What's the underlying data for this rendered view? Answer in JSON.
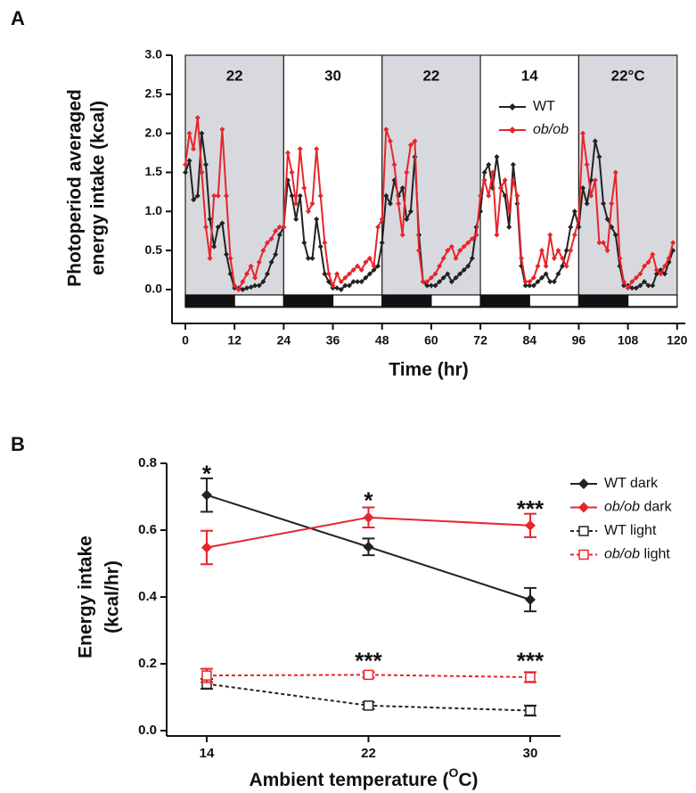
{
  "chart_data": [
    {
      "type": "line",
      "panel_label": "A",
      "y_label": [
        "Photoperiod averaged",
        "energy intake (kcal)"
      ],
      "x_label": "Time (hr)",
      "xlim": [
        -3,
        122
      ],
      "xticks": [
        0,
        12,
        24,
        36,
        48,
        60,
        72,
        84,
        96,
        108,
        120
      ],
      "ylim": [
        -0.4,
        3.0
      ],
      "yticks": [
        {
          "value": 0,
          "label": "0.0"
        },
        0.5,
        {
          "value": 1,
          "label": "1.0"
        },
        1.5,
        {
          "value": 2,
          "label": "2.0"
        },
        2.5,
        {
          "value": 3,
          "label": "3.0"
        }
      ],
      "periods": [
        {
          "label": "22",
          "start": 0,
          "end": 24,
          "shaded": true
        },
        {
          "label": "30",
          "start": 24,
          "end": 48,
          "shaded": false
        },
        {
          "label": "22",
          "start": 48,
          "end": 72,
          "shaded": true
        },
        {
          "label": "14",
          "start": 72,
          "end": 96,
          "shaded": false
        },
        {
          "label": "22°C",
          "start": 96,
          "end": 120,
          "shaded": true
        }
      ],
      "photoperiod": [
        {
          "start": 0,
          "end": 12,
          "phase": "dark"
        },
        {
          "start": 12,
          "end": 24,
          "phase": "light"
        },
        {
          "start": 24,
          "end": 36,
          "phase": "dark"
        },
        {
          "start": 36,
          "end": 48,
          "phase": "light"
        },
        {
          "start": 48,
          "end": 60,
          "phase": "dark"
        },
        {
          "start": 60,
          "end": 72,
          "phase": "light"
        },
        {
          "start": 72,
          "end": 84,
          "phase": "dark"
        },
        {
          "start": 84,
          "end": 96,
          "phase": "light"
        },
        {
          "start": 96,
          "end": 108,
          "phase": "dark"
        },
        {
          "start": 108,
          "end": 120,
          "phase": "light"
        }
      ],
      "legend": "upper right",
      "x": [
        0,
        1,
        2,
        3,
        4,
        5,
        6,
        7,
        8,
        9,
        10,
        11,
        12,
        13,
        14,
        15,
        16,
        17,
        18,
        19,
        20,
        21,
        22,
        23,
        24,
        25,
        26,
        27,
        28,
        29,
        30,
        31,
        32,
        33,
        34,
        35,
        36,
        37,
        38,
        39,
        40,
        41,
        42,
        43,
        44,
        45,
        46,
        47,
        48,
        49,
        50,
        51,
        52,
        53,
        54,
        55,
        56,
        57,
        58,
        59,
        60,
        61,
        62,
        63,
        64,
        65,
        66,
        67,
        68,
        69,
        70,
        71,
        72,
        73,
        74,
        75,
        76,
        77,
        78,
        79,
        80,
        81,
        82,
        83,
        84,
        85,
        86,
        87,
        88,
        89,
        90,
        91,
        92,
        93,
        94,
        95,
        96,
        97,
        98,
        99,
        100,
        101,
        102,
        103,
        104,
        105,
        106,
        107,
        108,
        109,
        110,
        111,
        112,
        113,
        114,
        115,
        116,
        117,
        118,
        119
      ],
      "series": [
        {
          "name": "WT",
          "color": "#222222",
          "values": [
            1.5,
            1.65,
            1.15,
            1.2,
            2.0,
            1.6,
            0.9,
            0.55,
            0.8,
            0.85,
            0.45,
            0.2,
            0.02,
            0.02,
            0.0,
            0.02,
            0.03,
            0.05,
            0.05,
            0.1,
            0.2,
            0.35,
            0.45,
            0.7,
            0.8,
            1.4,
            1.2,
            0.9,
            1.2,
            0.6,
            0.4,
            0.4,
            0.9,
            0.55,
            0.2,
            0.1,
            0.02,
            0.02,
            0.0,
            0.05,
            0.05,
            0.1,
            0.1,
            0.1,
            0.15,
            0.2,
            0.25,
            0.3,
            0.6,
            1.2,
            1.1,
            1.4,
            1.2,
            1.3,
            0.9,
            1.0,
            1.7,
            0.7,
            0.1,
            0.05,
            0.05,
            0.05,
            0.1,
            0.15,
            0.2,
            0.1,
            0.15,
            0.2,
            0.25,
            0.3,
            0.4,
            0.8,
            1.0,
            1.5,
            1.6,
            1.3,
            1.7,
            1.3,
            1.2,
            0.8,
            1.6,
            1.1,
            0.3,
            0.05,
            0.05,
            0.05,
            0.1,
            0.15,
            0.2,
            0.1,
            0.1,
            0.2,
            0.3,
            0.5,
            0.8,
            1.0,
            0.8,
            1.3,
            1.1,
            1.4,
            1.9,
            1.7,
            1.1,
            0.9,
            0.8,
            0.7,
            0.3,
            0.05,
            0.05,
            0.02,
            0.02,
            0.05,
            0.1,
            0.05,
            0.05,
            0.2,
            0.25,
            0.2,
            0.35,
            0.5
          ]
        },
        {
          "name": "ob/ob",
          "color": "#e8252b",
          "values": [
            1.6,
            2.0,
            1.8,
            2.2,
            1.5,
            0.8,
            0.4,
            1.2,
            1.2,
            2.05,
            1.2,
            0.4,
            0.05,
            0.0,
            0.1,
            0.2,
            0.3,
            0.15,
            0.35,
            0.5,
            0.6,
            0.65,
            0.75,
            0.8,
            0.8,
            1.75,
            1.5,
            1.1,
            1.8,
            1.3,
            1.0,
            1.1,
            1.8,
            1.2,
            0.6,
            0.2,
            0.05,
            0.2,
            0.1,
            0.15,
            0.2,
            0.25,
            0.3,
            0.25,
            0.35,
            0.4,
            0.3,
            0.8,
            0.9,
            2.05,
            1.9,
            1.6,
            1.1,
            0.7,
            1.5,
            1.85,
            1.9,
            0.5,
            0.1,
            0.1,
            0.15,
            0.2,
            0.3,
            0.4,
            0.5,
            0.55,
            0.4,
            0.5,
            0.55,
            0.6,
            0.65,
            0.7,
            1.2,
            1.4,
            1.2,
            1.5,
            0.7,
            1.3,
            1.4,
            1.0,
            1.4,
            1.2,
            0.4,
            0.1,
            0.1,
            0.15,
            0.3,
            0.5,
            0.3,
            0.7,
            0.4,
            0.5,
            0.4,
            0.3,
            0.5,
            0.7,
            0.9,
            2.0,
            1.6,
            1.2,
            1.4,
            0.6,
            0.6,
            0.5,
            1.1,
            1.5,
            0.4,
            0.1,
            0.02,
            0.1,
            0.15,
            0.2,
            0.3,
            0.35,
            0.45,
            0.25,
            0.2,
            0.3,
            0.4,
            0.6
          ]
        }
      ]
    },
    {
      "type": "line",
      "panel_label": "B",
      "y_label": [
        "Energy intake",
        "(kcal/hr)"
      ],
      "x_label": [
        "Ambient temperature (",
        "O",
        "C)"
      ],
      "xlim": [
        12,
        31.5
      ],
      "xticks": [
        14,
        22,
        30
      ],
      "ylim": [
        0,
        0.8
      ],
      "yticks": [
        {
          "value": 0,
          "label": "0.0"
        },
        0.2,
        0.4,
        0.6,
        0.8
      ],
      "legend": "right",
      "x": [
        14,
        22,
        30
      ],
      "annotations": [
        "*",
        "*",
        "***",
        "***",
        "***"
      ],
      "series": [
        {
          "name": "WT dark",
          "color": "#222222",
          "line_style": "solid",
          "marker": "diamond",
          "values": [
            0.705,
            0.55,
            0.392
          ],
          "errors": [
            0.05,
            0.025,
            0.035
          ]
        },
        {
          "name": "ob/ob dark",
          "color": "#e8252b",
          "line_style": "solid",
          "marker": "diamond",
          "values": [
            0.548,
            0.638,
            0.614
          ],
          "errors": [
            0.05,
            0.03,
            0.035
          ]
        },
        {
          "name": "WT light",
          "color": "#222222",
          "line_style": "dashed",
          "marker": "square-open",
          "values": [
            0.14,
            0.075,
            0.06
          ],
          "errors": [
            0.015,
            0.01,
            0.015
          ]
        },
        {
          "name": "ob/ob light",
          "color": "#e8252b",
          "line_style": "dashed",
          "marker": "square-open",
          "values": [
            0.165,
            0.167,
            0.16
          ],
          "errors": [
            0.02,
            0.008,
            0.015
          ]
        }
      ]
    }
  ]
}
